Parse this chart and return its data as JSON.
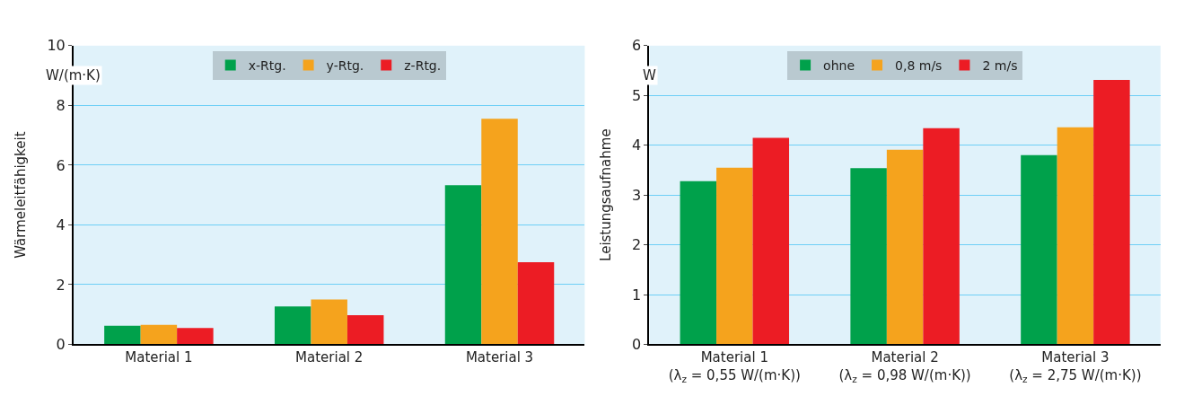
{
  "chart_data": [
    {
      "type": "bar",
      "ylabel": "Wärmeleitfähigkeit",
      "annotations": [
        "W/(m·K)"
      ],
      "categories": [
        "Material 1",
        "Material 2",
        "Material 3"
      ],
      "series": [
        {
          "name": "x-Rtg.",
          "color": "#00a14b",
          "values": [
            0.62,
            1.27,
            5.33
          ]
        },
        {
          "name": "y-Rtg.",
          "color": "#f5a31d",
          "values": [
            0.65,
            1.5,
            7.55
          ]
        },
        {
          "name": "z-Rtg.",
          "color": "#ec1c24",
          "values": [
            0.55,
            0.98,
            2.75
          ]
        }
      ],
      "ylim": [
        0,
        10
      ],
      "yticks": [
        0,
        2,
        4,
        6,
        8,
        10
      ],
      "grid": "y",
      "legend": "top"
    },
    {
      "type": "bar",
      "ylabel": "Leistungsaufnahme",
      "annotations": [
        "W"
      ],
      "categories": [
        "Material 1\n(λ$_{z}$ = 0,55 W/(m·K))",
        "Material 2\n(λ$_{z}$ = 0,98 W/(m·K))",
        "Material 3\n(λ$_{z}$ = 2,75 W/(m·K))"
      ],
      "series": [
        {
          "name": "ohne",
          "color": "#00a14b",
          "values": [
            3.28,
            3.54,
            3.8
          ]
        },
        {
          "name": "0,8 m/s",
          "color": "#f5a31d",
          "values": [
            3.55,
            3.91,
            4.36
          ]
        },
        {
          "name": "2 m/s",
          "color": "#ec1c24",
          "values": [
            4.15,
            4.34,
            5.31
          ]
        }
      ],
      "ylim": [
        0,
        6
      ],
      "yticks": [
        0,
        1,
        2,
        3,
        4,
        5,
        6
      ],
      "grid": "y",
      "legend": "top"
    }
  ]
}
